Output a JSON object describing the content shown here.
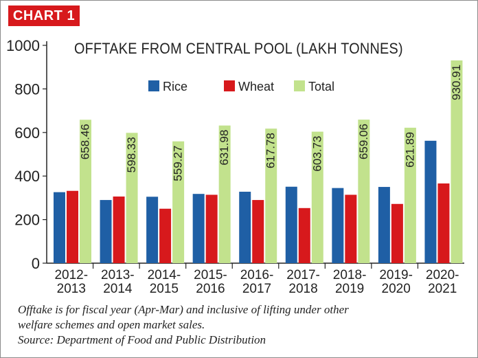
{
  "badge": "CHART 1",
  "chart_data": {
    "type": "bar",
    "title": "OFFTAKE FROM CENTRAL POOL (LAKH TONNES)",
    "categories": [
      [
        "2012-",
        "2013"
      ],
      [
        "2013-",
        "2014"
      ],
      [
        "2014-",
        "2015"
      ],
      [
        "2015-",
        "2016"
      ],
      [
        "2016-",
        "2017"
      ],
      [
        "2017-",
        "2018"
      ],
      [
        "2018-",
        "2019"
      ],
      [
        "2019-",
        "2020"
      ],
      [
        "2020-",
        "2021"
      ]
    ],
    "series": [
      {
        "name": "Rice",
        "color": "#1f5fa5",
        "values": [
          326,
          290,
          305,
          318,
          328,
          351,
          345,
          350,
          562
        ]
      },
      {
        "name": "Wheat",
        "color": "#d7191c",
        "values": [
          332,
          306,
          250,
          314,
          290,
          253,
          314,
          272,
          366
        ]
      },
      {
        "name": "Total",
        "color": "#c2e28d",
        "values": [
          658.46,
          598.33,
          559.27,
          631.98,
          617.78,
          603.73,
          659.06,
          621.89,
          930.91
        ],
        "labels": [
          "658.46",
          "598.33",
          "559.27",
          "631.98",
          "617.78",
          "603.73",
          "659.06",
          "621.89",
          "930.91"
        ]
      }
    ],
    "ylim": [
      0,
      1000
    ],
    "yticks": [
      0,
      200,
      400,
      600,
      800,
      1000
    ],
    "legend": "top-center",
    "grid": false
  },
  "note": {
    "line1": "Offtake is for fiscal year (Apr-Mar) and inclusive of lifting under other",
    "line2": "welfare schemes and open market sales.",
    "source": "Source: Department of Food and Public Distribution"
  }
}
